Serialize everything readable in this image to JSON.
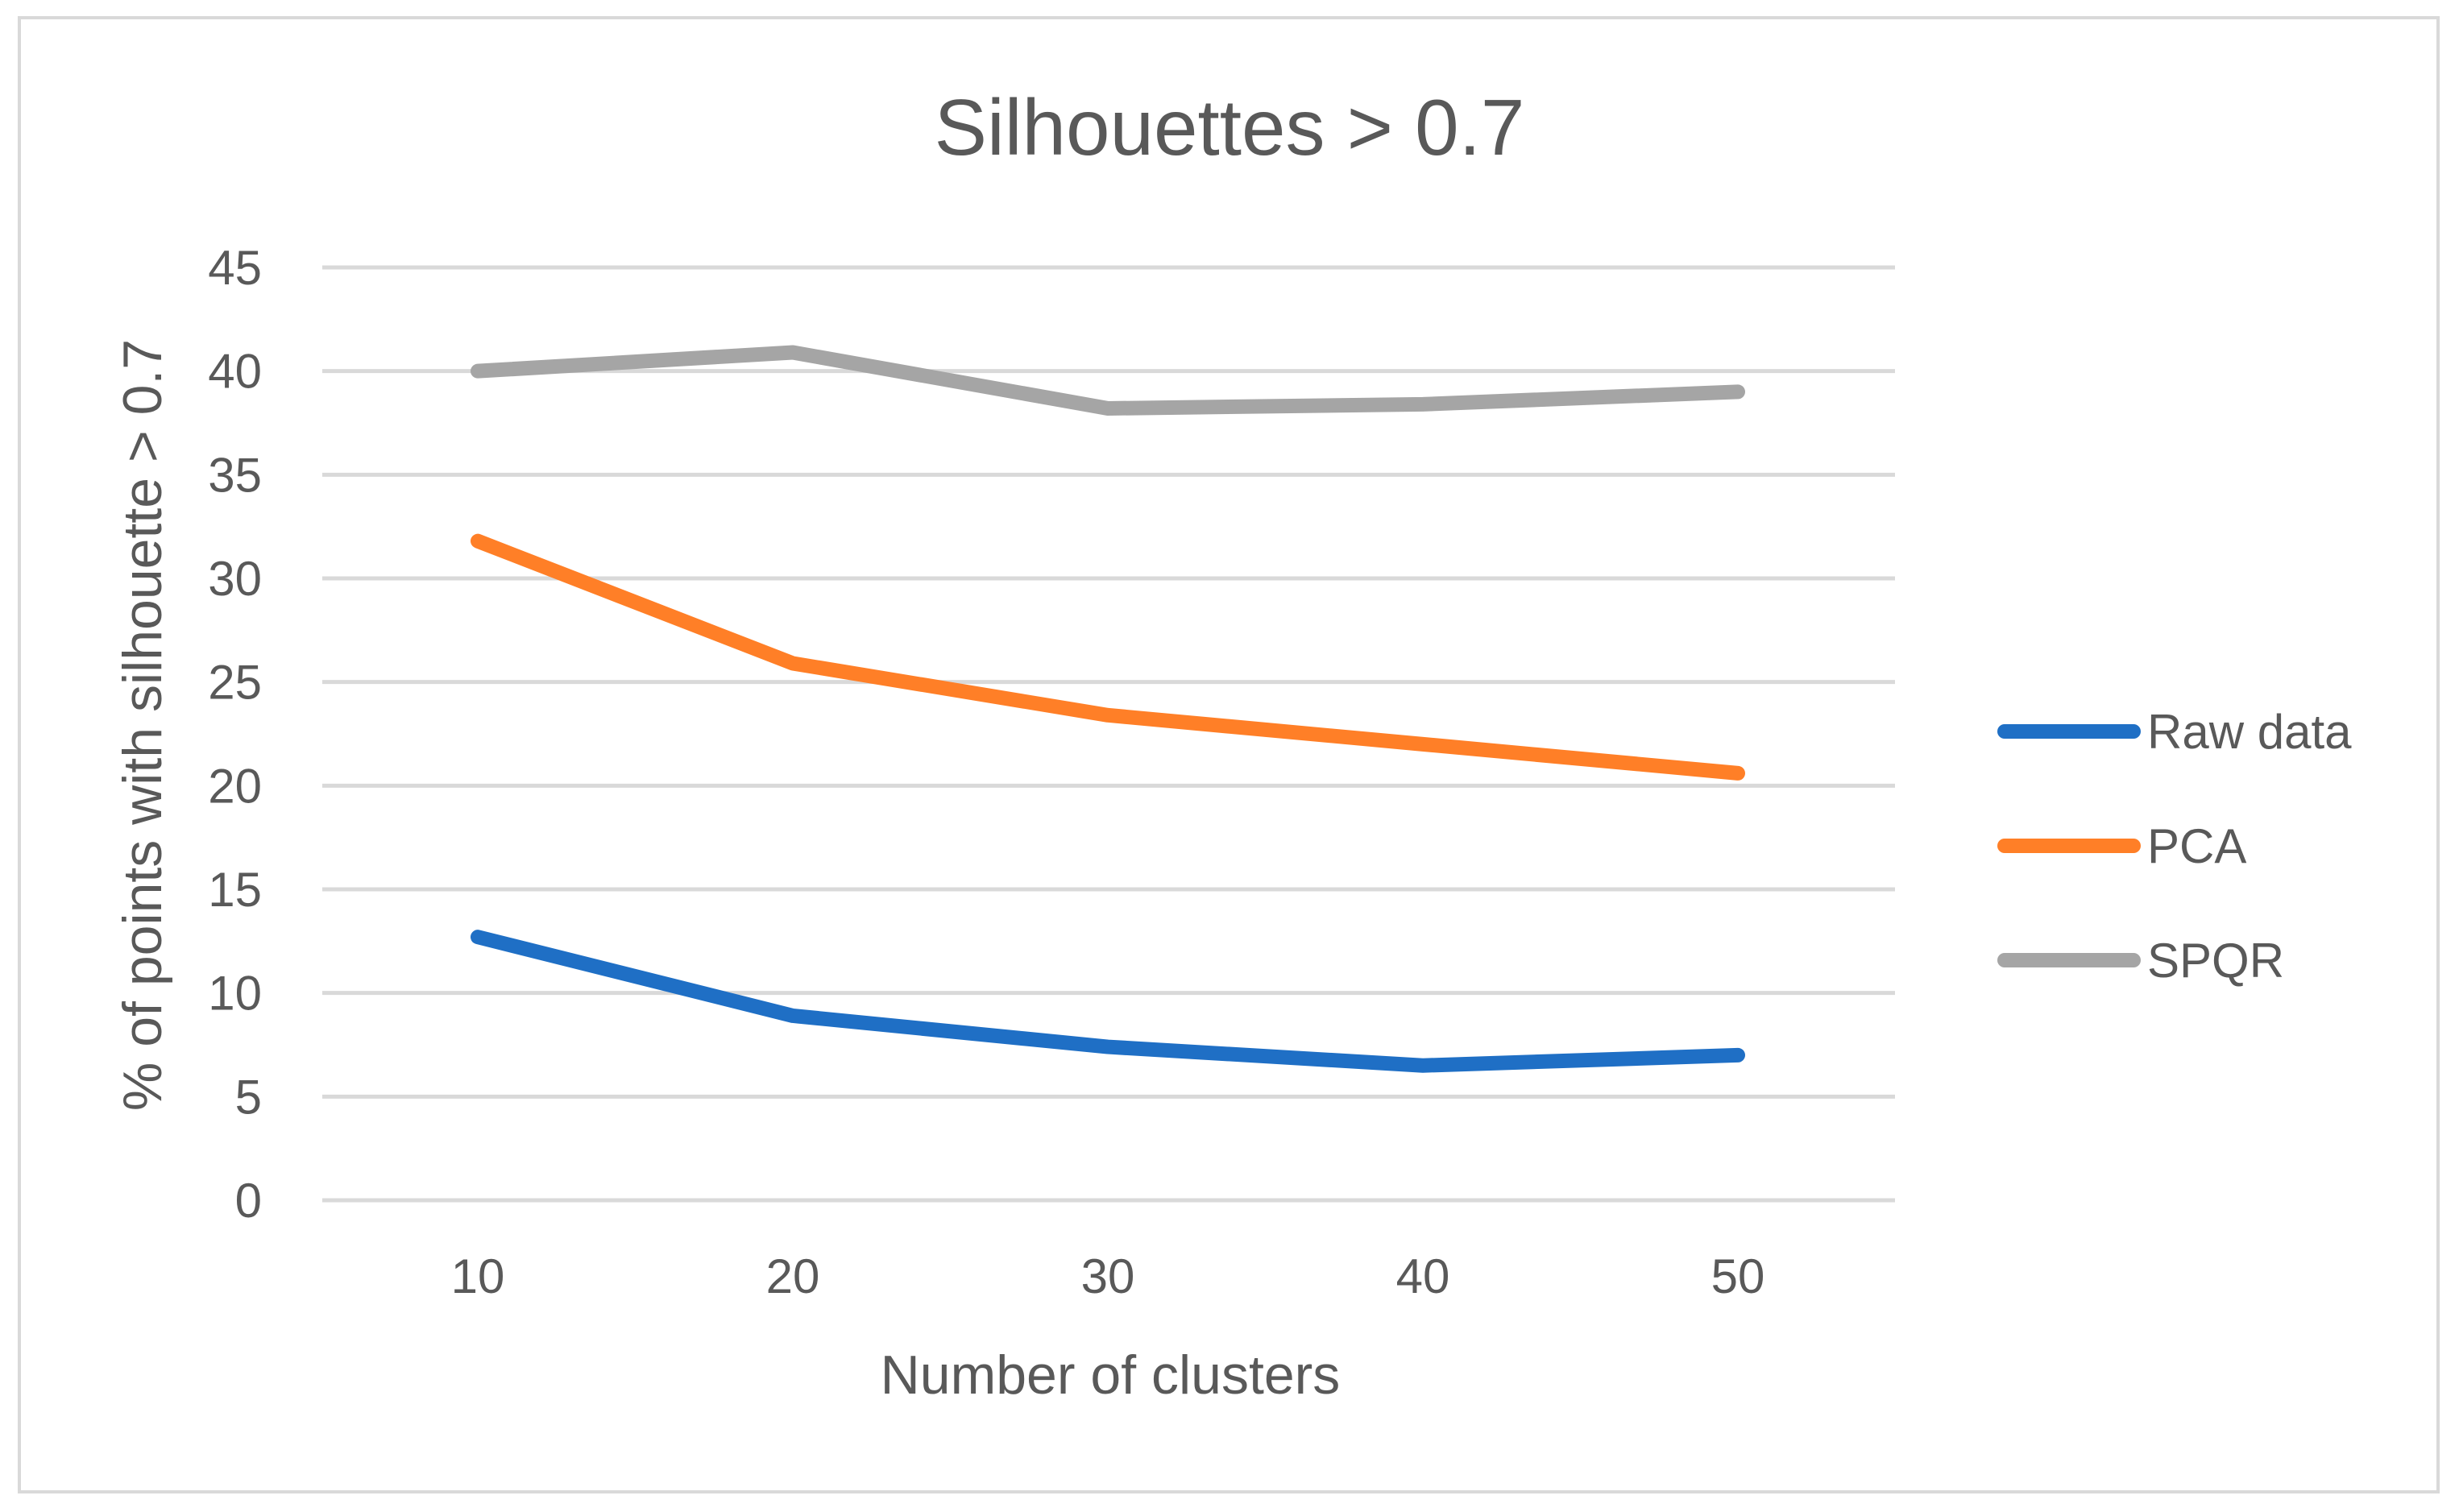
{
  "chart_data": {
    "type": "line",
    "title": "Silhouettes > 0.7",
    "xlabel": "Number of clusters",
    "ylabel": "% of points with silhouette > 0.7",
    "categories": [
      "10",
      "20",
      "30",
      "40",
      "50"
    ],
    "ylim": [
      0,
      45
    ],
    "yticks": [
      0,
      5,
      10,
      15,
      20,
      25,
      30,
      35,
      40,
      45
    ],
    "grid": true,
    "legend_position": "right",
    "series": [
      {
        "name": "Raw data",
        "color": "#1f6fc5",
        "values": [
          12.7,
          8.9,
          7.4,
          6.5,
          7.0
        ]
      },
      {
        "name": "PCA",
        "color": "#ff7f27",
        "values": [
          31.8,
          25.9,
          23.4,
          22.0,
          20.6
        ]
      },
      {
        "name": "SPQR",
        "color": "#a5a5a5",
        "values": [
          40.0,
          40.9,
          38.2,
          38.4,
          39.0
        ]
      }
    ]
  }
}
